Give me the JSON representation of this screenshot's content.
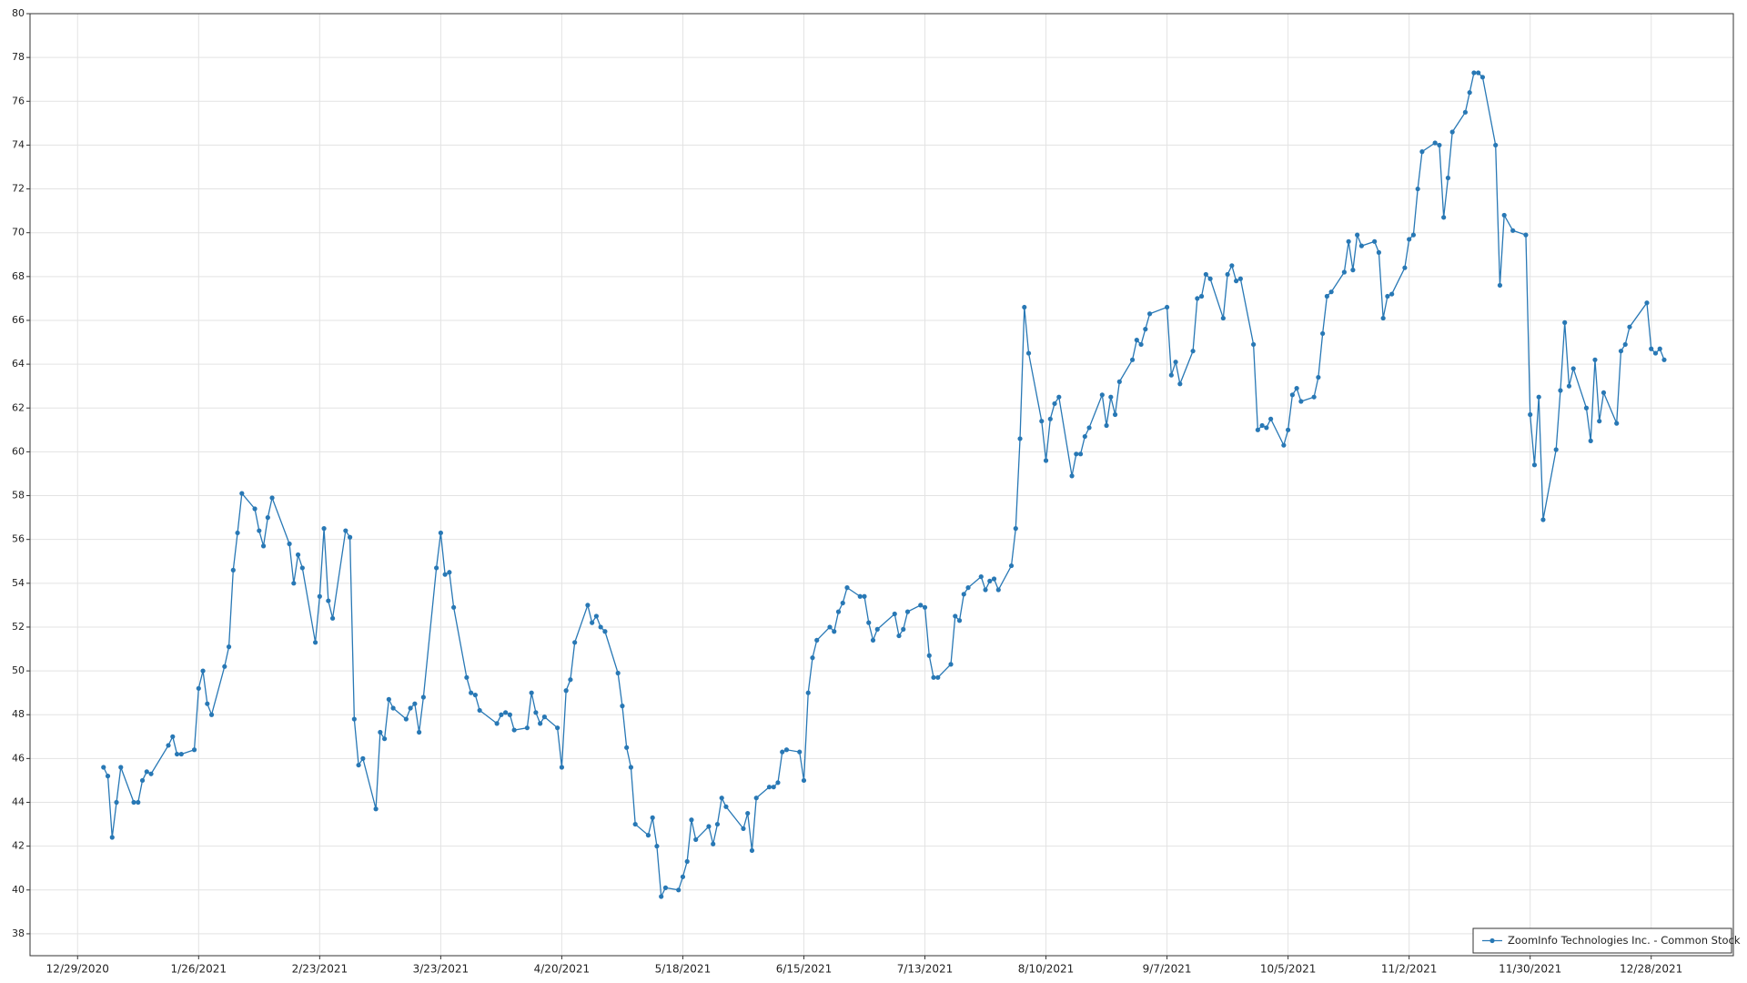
{
  "chart_data": {
    "type": "line",
    "x": [
      "1/4/2021",
      "1/5/2021",
      "1/6/2021",
      "1/7/2021",
      "1/8/2021",
      "1/11/2021",
      "1/12/2021",
      "1/13/2021",
      "1/14/2021",
      "1/15/2021",
      "1/19/2021",
      "1/20/2021",
      "1/21/2021",
      "1/22/2021",
      "1/25/2021",
      "1/26/2021",
      "1/27/2021",
      "1/28/2021",
      "1/29/2021",
      "2/1/2021",
      "2/2/2021",
      "2/3/2021",
      "2/4/2021",
      "2/5/2021",
      "2/8/2021",
      "2/9/2021",
      "2/10/2021",
      "2/11/2021",
      "2/12/2021",
      "2/16/2021",
      "2/17/2021",
      "2/18/2021",
      "2/19/2021",
      "2/22/2021",
      "2/23/2021",
      "2/24/2021",
      "2/25/2021",
      "2/26/2021",
      "3/1/2021",
      "3/2/2021",
      "3/3/2021",
      "3/4/2021",
      "3/5/2021",
      "3/8/2021",
      "3/9/2021",
      "3/10/2021",
      "3/11/2021",
      "3/12/2021",
      "3/15/2021",
      "3/16/2021",
      "3/17/2021",
      "3/18/2021",
      "3/19/2021",
      "3/22/2021",
      "3/23/2021",
      "3/24/2021",
      "3/25/2021",
      "3/26/2021",
      "3/29/2021",
      "3/30/2021",
      "3/31/2021",
      "4/1/2021",
      "4/5/2021",
      "4/6/2021",
      "4/7/2021",
      "4/8/2021",
      "4/9/2021",
      "4/12/2021",
      "4/13/2021",
      "4/14/2021",
      "4/15/2021",
      "4/16/2021",
      "4/19/2021",
      "4/20/2021",
      "4/21/2021",
      "4/22/2021",
      "4/23/2021",
      "4/26/2021",
      "4/27/2021",
      "4/28/2021",
      "4/29/2021",
      "4/30/2021",
      "5/3/2021",
      "5/4/2021",
      "5/5/2021",
      "5/6/2021",
      "5/7/2021",
      "5/10/2021",
      "5/11/2021",
      "5/12/2021",
      "5/13/2021",
      "5/14/2021",
      "5/17/2021",
      "5/18/2021",
      "5/19/2021",
      "5/20/2021",
      "5/21/2021",
      "5/24/2021",
      "5/25/2021",
      "5/26/2021",
      "5/27/2021",
      "5/28/2021",
      "6/1/2021",
      "6/2/2021",
      "6/3/2021",
      "6/4/2021",
      "6/7/2021",
      "6/8/2021",
      "6/9/2021",
      "6/10/2021",
      "6/11/2021",
      "6/14/2021",
      "6/15/2021",
      "6/16/2021",
      "6/17/2021",
      "6/18/2021",
      "6/21/2021",
      "6/22/2021",
      "6/23/2021",
      "6/24/2021",
      "6/25/2021",
      "6/28/2021",
      "6/29/2021",
      "6/30/2021",
      "7/1/2021",
      "7/2/2021",
      "7/6/2021",
      "7/7/2021",
      "7/8/2021",
      "7/9/2021",
      "7/12/2021",
      "7/13/2021",
      "7/14/2021",
      "7/15/2021",
      "7/16/2021",
      "7/19/2021",
      "7/20/2021",
      "7/21/2021",
      "7/22/2021",
      "7/23/2021",
      "7/26/2021",
      "7/27/2021",
      "7/28/2021",
      "7/29/2021",
      "7/30/2021",
      "8/2/2021",
      "8/3/2021",
      "8/4/2021",
      "8/5/2021",
      "8/6/2021",
      "8/9/2021",
      "8/10/2021",
      "8/11/2021",
      "8/12/2021",
      "8/13/2021",
      "8/16/2021",
      "8/17/2021",
      "8/18/2021",
      "8/19/2021",
      "8/20/2021",
      "8/23/2021",
      "8/24/2021",
      "8/25/2021",
      "8/26/2021",
      "8/27/2021",
      "8/30/2021",
      "8/31/2021",
      "9/1/2021",
      "9/2/2021",
      "9/3/2021",
      "9/7/2021",
      "9/8/2021",
      "9/9/2021",
      "9/10/2021",
      "9/13/2021",
      "9/14/2021",
      "9/15/2021",
      "9/16/2021",
      "9/17/2021",
      "9/20/2021",
      "9/21/2021",
      "9/22/2021",
      "9/23/2021",
      "9/24/2021",
      "9/27/2021",
      "9/28/2021",
      "9/29/2021",
      "9/30/2021",
      "10/1/2021",
      "10/4/2021",
      "10/5/2021",
      "10/6/2021",
      "10/7/2021",
      "10/8/2021",
      "10/11/2021",
      "10/12/2021",
      "10/13/2021",
      "10/14/2021",
      "10/15/2021",
      "10/18/2021",
      "10/19/2021",
      "10/20/2021",
      "10/21/2021",
      "10/22/2021",
      "10/25/2021",
      "10/26/2021",
      "10/27/2021",
      "10/28/2021",
      "10/29/2021",
      "11/1/2021",
      "11/2/2021",
      "11/3/2021",
      "11/4/2021",
      "11/5/2021",
      "11/8/2021",
      "11/9/2021",
      "11/10/2021",
      "11/11/2021",
      "11/12/2021",
      "11/15/2021",
      "11/16/2021",
      "11/17/2021",
      "11/18/2021",
      "11/19/2021",
      "11/22/2021",
      "11/23/2021",
      "11/24/2021",
      "11/26/2021",
      "11/29/2021",
      "11/30/2021",
      "12/1/2021",
      "12/2/2021",
      "12/3/2021",
      "12/6/2021",
      "12/7/2021",
      "12/8/2021",
      "12/9/2021",
      "12/10/2021",
      "12/13/2021",
      "12/14/2021",
      "12/15/2021",
      "12/16/2021",
      "12/17/2021",
      "12/20/2021",
      "12/21/2021",
      "12/22/2021",
      "12/23/2021",
      "12/27/2021",
      "12/28/2021",
      "12/29/2021",
      "12/30/2021",
      "12/31/2021"
    ],
    "series": [
      {
        "name": "ZoomInfo Technologies Inc. - Common Stock",
        "color": "#2878b5",
        "values": [
          45.6,
          45.2,
          42.4,
          44.0,
          45.6,
          44.0,
          44.0,
          45.0,
          45.4,
          45.3,
          46.6,
          47.0,
          46.2,
          46.2,
          46.4,
          49.2,
          50.0,
          48.5,
          48.0,
          50.2,
          51.1,
          54.6,
          56.3,
          58.1,
          57.4,
          56.4,
          55.7,
          57.0,
          57.9,
          55.8,
          54.0,
          55.3,
          54.7,
          51.3,
          53.4,
          56.5,
          53.2,
          52.4,
          56.4,
          56.1,
          47.8,
          45.7,
          46.0,
          43.7,
          47.2,
          46.9,
          48.7,
          48.3,
          47.8,
          48.3,
          48.5,
          47.2,
          48.8,
          54.7,
          56.3,
          54.4,
          54.5,
          52.9,
          49.7,
          49.0,
          48.9,
          48.2,
          47.6,
          48.0,
          48.1,
          48.0,
          47.3,
          47.4,
          49.0,
          48.1,
          47.6,
          47.9,
          47.4,
          45.6,
          49.1,
          49.6,
          51.3,
          53.0,
          52.2,
          52.5,
          52.0,
          51.8,
          49.9,
          48.4,
          46.5,
          45.6,
          43.0,
          42.5,
          43.3,
          42.0,
          39.7,
          40.1,
          40.0,
          40.6,
          41.3,
          43.2,
          42.3,
          42.9,
          42.1,
          43.0,
          44.2,
          43.8,
          42.8,
          43.5,
          41.8,
          44.2,
          44.7,
          44.7,
          44.9,
          46.3,
          46.4,
          46.3,
          45.0,
          49.0,
          50.6,
          51.4,
          52.0,
          51.8,
          52.7,
          53.1,
          53.8,
          53.4,
          53.4,
          52.2,
          51.4,
          51.9,
          52.6,
          51.6,
          51.9,
          52.7,
          53.0,
          52.9,
          50.7,
          49.7,
          49.7,
          50.3,
          52.5,
          52.3,
          53.5,
          53.8,
          54.3,
          53.7,
          54.1,
          54.2,
          53.7,
          54.8,
          56.5,
          60.6,
          66.6,
          64.5,
          61.4,
          59.6,
          61.5,
          62.2,
          62.5,
          58.9,
          59.9,
          59.9,
          60.7,
          61.1,
          62.6,
          61.2,
          62.5,
          61.7,
          63.2,
          64.2,
          65.1,
          64.9,
          65.6,
          66.3,
          66.6,
          63.5,
          64.1,
          63.1,
          64.6,
          67.0,
          67.1,
          68.1,
          67.9,
          66.1,
          68.1,
          68.5,
          67.8,
          67.9,
          64.9,
          61.0,
          61.2,
          61.1,
          61.5,
          60.3,
          61.0,
          62.6,
          62.9,
          62.3,
          62.5,
          63.4,
          65.4,
          67.1,
          67.3,
          68.2,
          69.6,
          68.3,
          69.9,
          69.4,
          69.6,
          69.1,
          66.1,
          67.1,
          67.2,
          68.4,
          69.7,
          69.9,
          72.0,
          73.7,
          74.1,
          74.0,
          70.7,
          72.5,
          74.6,
          75.5,
          76.4,
          77.3,
          77.3,
          77.1,
          74.0,
          67.6,
          70.8,
          70.1,
          69.9,
          61.7,
          59.4,
          62.5,
          56.9,
          60.1,
          62.8,
          65.9,
          63.0,
          63.8,
          62.0,
          60.5,
          64.2,
          61.4,
          62.7,
          61.3,
          64.6,
          64.9,
          65.7,
          66.8,
          64.7,
          64.5,
          64.7,
          64.2
        ]
      }
    ],
    "xlim": [
      "12/18/2020",
      "1/16/2022"
    ],
    "xticks": [
      "12/29/2020",
      "1/26/2021",
      "2/23/2021",
      "3/23/2021",
      "4/20/2021",
      "5/18/2021",
      "6/15/2021",
      "7/13/2021",
      "8/10/2021",
      "9/7/2021",
      "10/5/2021",
      "11/2/2021",
      "11/30/2021",
      "12/28/2021"
    ],
    "ylim": [
      37,
      80
    ],
    "yticks": [
      38,
      40,
      42,
      44,
      46,
      48,
      50,
      52,
      54,
      56,
      58,
      60,
      62,
      64,
      66,
      68,
      70,
      72,
      74,
      76,
      78,
      80
    ],
    "grid": true,
    "markers": true,
    "legend": "lower right"
  }
}
